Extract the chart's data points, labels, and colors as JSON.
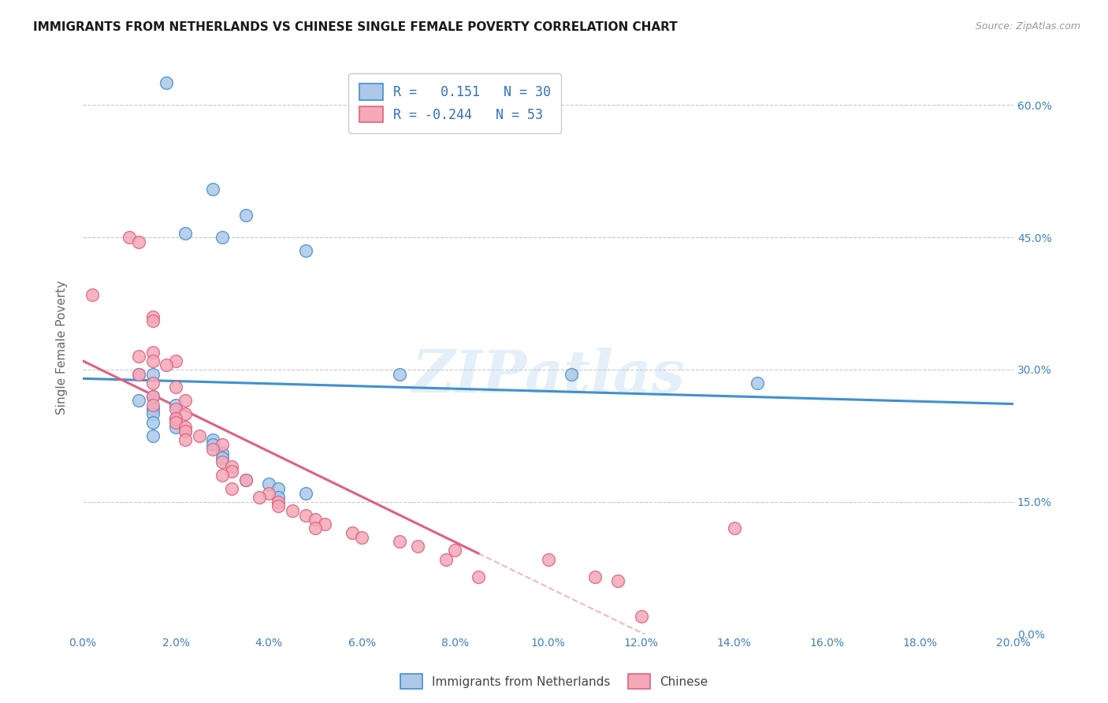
{
  "title": "IMMIGRANTS FROM NETHERLANDS VS CHINESE SINGLE FEMALE POVERTY CORRELATION CHART",
  "source": "Source: ZipAtlas.com",
  "ylabel": "Single Female Poverty",
  "watermark": "ZIPatlas",
  "netherlands_color": "#adc8e8",
  "chinese_color": "#f4a8b8",
  "netherlands_line_color": "#4090d0",
  "chinese_line_color": "#e06080",
  "netherlands_scatter": [
    [
      1.8,
      62.5
    ],
    [
      2.8,
      50.5
    ],
    [
      3.5,
      47.5
    ],
    [
      2.2,
      45.5
    ],
    [
      3.0,
      45.0
    ],
    [
      4.8,
      43.5
    ],
    [
      1.5,
      29.5
    ],
    [
      1.2,
      29.5
    ],
    [
      6.8,
      29.5
    ],
    [
      10.5,
      29.5
    ],
    [
      1.5,
      27.0
    ],
    [
      1.2,
      26.5
    ],
    [
      2.0,
      26.0
    ],
    [
      1.5,
      25.5
    ],
    [
      1.5,
      25.0
    ],
    [
      2.0,
      24.5
    ],
    [
      1.5,
      24.0
    ],
    [
      2.0,
      23.5
    ],
    [
      2.2,
      23.0
    ],
    [
      1.5,
      22.5
    ],
    [
      2.8,
      22.0
    ],
    [
      2.8,
      21.5
    ],
    [
      3.0,
      20.5
    ],
    [
      3.0,
      20.0
    ],
    [
      3.5,
      17.5
    ],
    [
      4.0,
      17.0
    ],
    [
      4.2,
      16.5
    ],
    [
      4.8,
      16.0
    ],
    [
      4.2,
      15.5
    ],
    [
      14.5,
      28.5
    ]
  ],
  "chinese_scatter": [
    [
      0.2,
      38.5
    ],
    [
      1.0,
      45.0
    ],
    [
      1.2,
      44.5
    ],
    [
      1.5,
      36.0
    ],
    [
      1.5,
      35.5
    ],
    [
      1.5,
      32.0
    ],
    [
      1.2,
      31.5
    ],
    [
      2.0,
      31.0
    ],
    [
      1.5,
      31.0
    ],
    [
      1.8,
      30.5
    ],
    [
      1.2,
      29.5
    ],
    [
      1.5,
      28.5
    ],
    [
      2.0,
      28.0
    ],
    [
      1.5,
      27.0
    ],
    [
      2.2,
      26.5
    ],
    [
      1.5,
      26.0
    ],
    [
      2.0,
      25.5
    ],
    [
      2.2,
      25.0
    ],
    [
      2.0,
      24.5
    ],
    [
      2.0,
      24.0
    ],
    [
      2.2,
      23.5
    ],
    [
      2.2,
      23.0
    ],
    [
      2.5,
      22.5
    ],
    [
      2.2,
      22.0
    ],
    [
      3.0,
      21.5
    ],
    [
      2.8,
      21.0
    ],
    [
      3.0,
      19.5
    ],
    [
      3.2,
      19.0
    ],
    [
      3.2,
      18.5
    ],
    [
      3.0,
      18.0
    ],
    [
      3.5,
      17.5
    ],
    [
      3.2,
      16.5
    ],
    [
      4.0,
      16.0
    ],
    [
      3.8,
      15.5
    ],
    [
      4.2,
      15.0
    ],
    [
      4.2,
      14.5
    ],
    [
      4.5,
      14.0
    ],
    [
      4.8,
      13.5
    ],
    [
      5.0,
      13.0
    ],
    [
      5.2,
      12.5
    ],
    [
      5.0,
      12.0
    ],
    [
      5.8,
      11.5
    ],
    [
      6.0,
      11.0
    ],
    [
      6.8,
      10.5
    ],
    [
      7.2,
      10.0
    ],
    [
      8.0,
      9.5
    ],
    [
      10.0,
      8.5
    ],
    [
      14.0,
      12.0
    ],
    [
      8.5,
      6.5
    ],
    [
      11.5,
      6.0
    ],
    [
      12.0,
      2.0
    ],
    [
      7.8,
      8.5
    ],
    [
      11.0,
      6.5
    ]
  ],
  "nl_regression": [
    0.0,
    20.0,
    25.0,
    37.0
  ],
  "cn_regression_solid": [
    0.0,
    8.5,
    26.5,
    12.5
  ],
  "cn_regression_dash": [
    8.5,
    20.0,
    12.5,
    -5.0
  ],
  "xlim": [
    0.0,
    20.0
  ],
  "ylim": [
    0.0,
    65.0
  ],
  "x_ticks": [
    0.0,
    2.0,
    4.0,
    6.0,
    8.0,
    10.0,
    12.0,
    14.0,
    16.0,
    18.0,
    20.0
  ],
  "y_ticks": [
    0.0,
    15.0,
    30.0,
    45.0,
    60.0
  ],
  "background_color": "#ffffff",
  "grid_color": "#c8c8c8"
}
